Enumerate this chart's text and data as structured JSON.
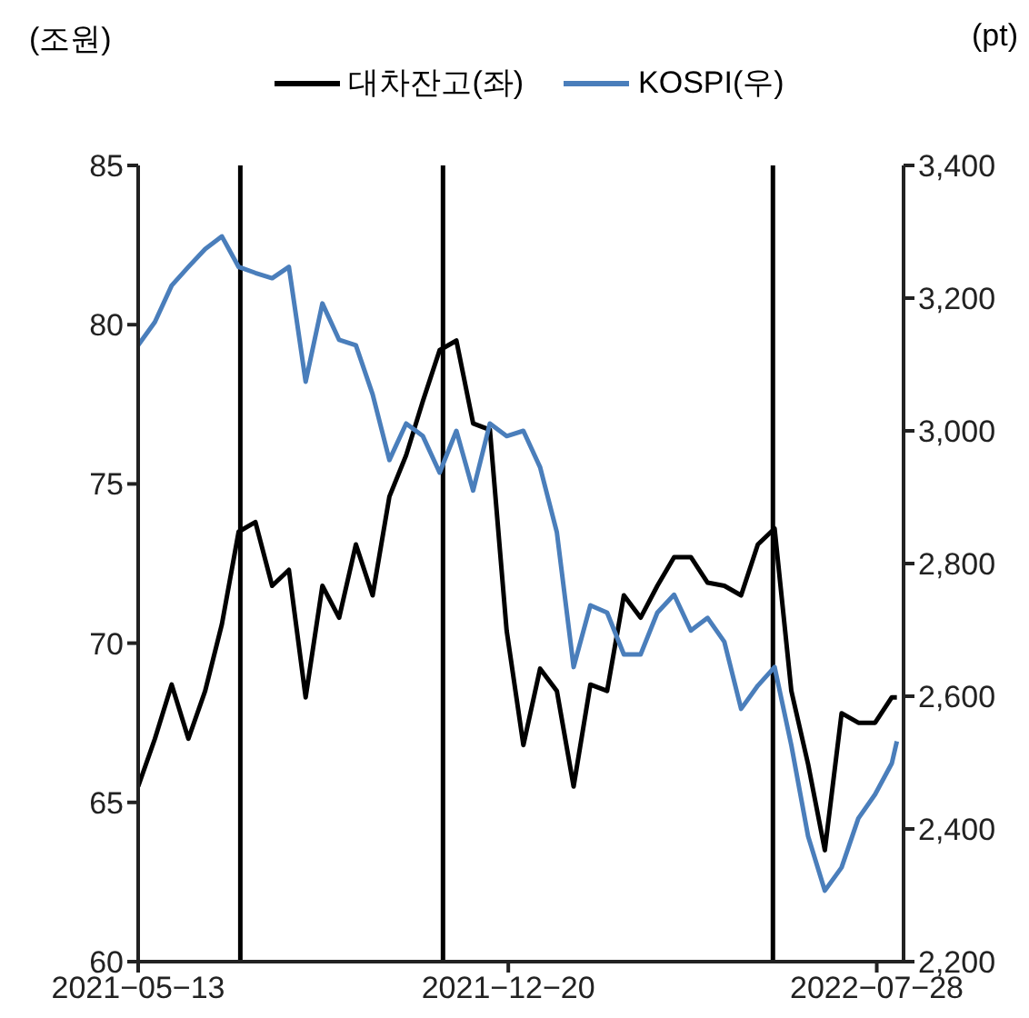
{
  "chart_data": {
    "type": "line",
    "x": [
      "2021-05-13",
      "2021-05-23",
      "2021-06-02",
      "2021-06-12",
      "2021-06-22",
      "2021-07-02",
      "2021-07-12",
      "2021-07-22",
      "2021-08-01",
      "2021-08-11",
      "2021-08-21",
      "2021-08-31",
      "2021-09-10",
      "2021-09-20",
      "2021-09-30",
      "2021-10-10",
      "2021-10-20",
      "2021-10-30",
      "2021-11-09",
      "2021-11-19",
      "2021-11-29",
      "2021-12-09",
      "2021-12-19",
      "2021-12-29",
      "2022-01-08",
      "2022-01-18",
      "2022-01-28",
      "2022-02-07",
      "2022-02-17",
      "2022-02-27",
      "2022-03-09",
      "2022-03-19",
      "2022-03-29",
      "2022-04-08",
      "2022-04-18",
      "2022-04-28",
      "2022-05-08",
      "2022-05-18",
      "2022-05-28",
      "2022-06-07",
      "2022-06-17",
      "2022-06-27",
      "2022-07-07",
      "2022-07-17",
      "2022-07-27",
      "2022-08-06",
      "2022-08-09"
    ],
    "series": [
      {
        "name": "대차잔고(좌)",
        "color": "#000000",
        "values": [
          65.5,
          67.0,
          68.7,
          67.0,
          68.5,
          70.6,
          73.5,
          73.8,
          71.8,
          72.3,
          68.3,
          71.8,
          70.8,
          73.1,
          71.5,
          74.6,
          75.9,
          77.6,
          79.2,
          79.5,
          76.9,
          76.7,
          70.4,
          66.8,
          69.2,
          68.5,
          65.5,
          68.7,
          68.5,
          71.5,
          70.8,
          71.8,
          72.7,
          72.7,
          71.9,
          71.8,
          71.5,
          73.1,
          73.6,
          68.5,
          66.2,
          63.5,
          67.8,
          67.5,
          67.5,
          68.3,
          68.3
        ]
      },
      {
        "name": "KOSPI(우)",
        "color": "#4a7ebb",
        "axis": "y2",
        "values": [
          3129,
          3164,
          3219,
          3247,
          3274,
          3293,
          3247,
          3238,
          3230,
          3247,
          3074,
          3192,
          3137,
          3129,
          3055,
          2956,
          3011,
          2992,
          2937,
          3000,
          2910,
          3011,
          2992,
          3000,
          2945,
          2847,
          2644,
          2737,
          2726,
          2663,
          2663,
          2726,
          2753,
          2699,
          2718,
          2682,
          2581,
          2616,
          2644,
          2526,
          2389,
          2307,
          2342,
          2416,
          2452,
          2499,
          2532
        ]
      }
    ],
    "xlim": [
      "2021-05-13",
      "2022-08-13"
    ],
    "xticks": [
      {
        "value": "2021-05-13",
        "label": "2021−05−13"
      },
      {
        "value": "2021-12-20",
        "label": "2021−12−20"
      },
      {
        "value": "2022-07-28",
        "label": "2022−07−28"
      }
    ],
    "ylim": [
      60,
      85
    ],
    "yticks": [
      60,
      65,
      70,
      75,
      80,
      85
    ],
    "y2lim": [
      2200,
      3400
    ],
    "y2ticks": [
      {
        "value": 2200,
        "label": "2,200"
      },
      {
        "value": 2400,
        "label": "2,400"
      },
      {
        "value": 2600,
        "label": "2,600"
      },
      {
        "value": 2800,
        "label": "2,800"
      },
      {
        "value": 3000,
        "label": "3,000"
      },
      {
        "value": 3200,
        "label": "3,200"
      },
      {
        "value": 3400,
        "label": "3,400"
      }
    ],
    "ylabel": "(조원)",
    "y2label": "(pt)",
    "ref_lines": [
      {
        "axis": "x",
        "value": "2021-07-13",
        "color": "#000000"
      },
      {
        "axis": "x",
        "value": "2021-11-11",
        "color": "#000000"
      },
      {
        "axis": "x",
        "value": "2022-05-27",
        "color": "#000000"
      }
    ],
    "legend": "top",
    "grid": false,
    "marker": "none",
    "line_style": "solid"
  }
}
